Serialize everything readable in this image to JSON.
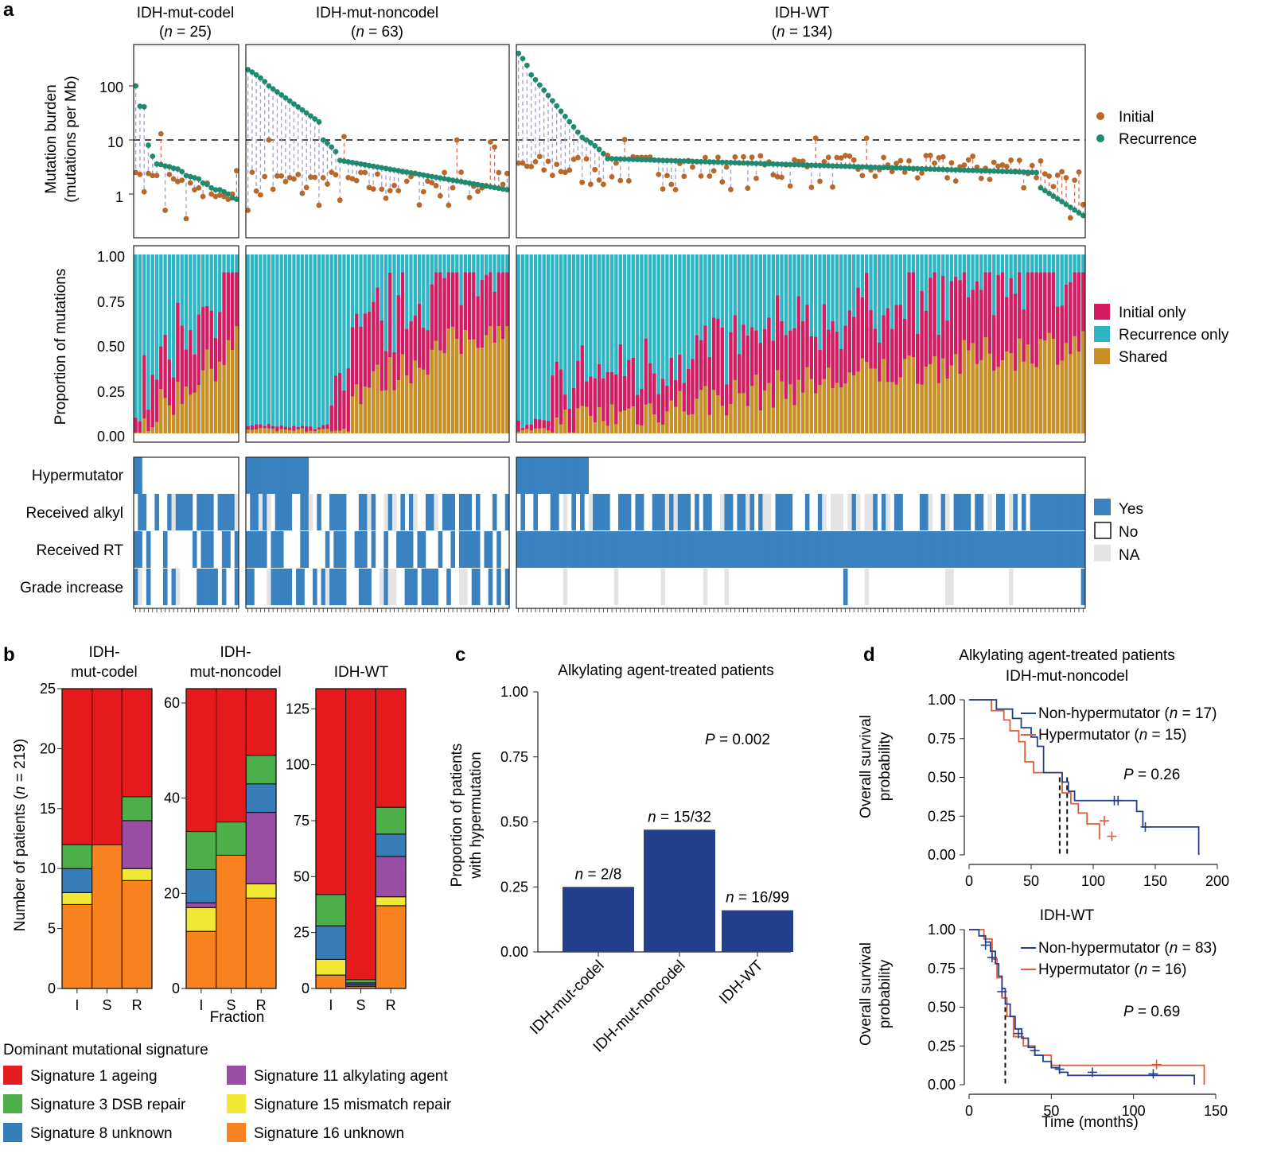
{
  "panel_labels": {
    "a": "a",
    "b": "b",
    "c": "c",
    "d": "d"
  },
  "panel_a": {
    "groups": [
      {
        "name": "IDH-mut-codel",
        "n_prefix": "(",
        "n_var": "n",
        "n_suffix": " = 25)"
      },
      {
        "name": "IDH-mut-noncodel",
        "n_prefix": "(",
        "n_var": "n",
        "n_suffix": " = 63)"
      },
      {
        "name": "IDH-WT",
        "n_prefix": "(",
        "n_var": "n",
        "n_suffix": " = 134)"
      }
    ],
    "burden": {
      "ylabel1": "Mutation burden",
      "ylabel2": "(mutations per Mb)",
      "yticks": [
        "100",
        "10",
        "1"
      ],
      "legend": [
        {
          "label": "Initial",
          "color": "#b8682a"
        },
        {
          "label": "Recurrence",
          "color": "#1f8a70"
        }
      ],
      "threshold": 10
    },
    "proportion": {
      "ylabel": "Proportion of mutations",
      "yticks": [
        "1.00",
        "0.75",
        "0.50",
        "0.25",
        "0.00"
      ],
      "legend": [
        {
          "label": "Initial only",
          "color": "#d81b60"
        },
        {
          "label": "Recurrence only",
          "color": "#2db5c3"
        },
        {
          "label": "Shared",
          "color": "#cc8e22"
        }
      ]
    },
    "annotations": {
      "rows": [
        "Hypermutator",
        "Received alkyl",
        "Received RT",
        "Grade increase"
      ],
      "legend": [
        {
          "label": "Yes",
          "color": "#3a81c0"
        },
        {
          "label": "No",
          "color": "#ffffff"
        },
        {
          "label": "NA",
          "color": "#e4e4e4"
        }
      ]
    }
  },
  "panel_b": {
    "ylabel_prefix": "Number of patients (",
    "ylabel_var": "n",
    "ylabel_suffix": " = 219)",
    "xlabel": "Fraction",
    "legend_title": "Dominant mutational signature",
    "legend": [
      {
        "label": "Signature 1 ageing",
        "color": "#e41a1c"
      },
      {
        "label": "Signature 11 alkylating agent",
        "color": "#984ea3"
      },
      {
        "label": "Signature 3 DSB repair",
        "color": "#4daf4a"
      },
      {
        "label": "Signature 15 mismatch repair",
        "color": "#f1e836"
      },
      {
        "label": "Signature 8 unknown",
        "color": "#377eb8"
      },
      {
        "label": "Signature 16 unknown",
        "color": "#f7821f"
      }
    ]
  },
  "panel_c": {
    "title": "Alkylating agent-treated patients",
    "ylabel1": "Proportion of patients",
    "ylabel2": "with hypermutation",
    "p_var": "P",
    "p_text": " = 0.002",
    "bar_color": "#243f8b"
  },
  "panel_d": {
    "title1": "Alkylating agent-treated patients",
    "title2": "IDH-mut-noncodel",
    "title3": "IDH-WT",
    "ylabel1": "Overall survival",
    "ylabel2": "probability",
    "xlabel": "Time (months)",
    "top": {
      "legend": [
        {
          "pre": "Non-hypermutator (",
          "var": "n",
          "post": " = 17)",
          "color": "#243f8b"
        },
        {
          "pre": "Hypermutator (",
          "var": "n",
          "post": " = 15)",
          "color": "#e05a35"
        }
      ],
      "p_var": "P",
      "p_text": " = 0.26"
    },
    "bottom": {
      "legend": [
        {
          "pre": "Non-hypermutator (",
          "var": "n",
          "post": " = 83)",
          "color": "#243f8b"
        },
        {
          "pre": "Hypermutator (",
          "var": "n",
          "post": " = 16)",
          "color": "#e05a35"
        }
      ],
      "p_var": "P",
      "p_text": " = 0.69"
    }
  },
  "chart_data": [
    {
      "type": "scatter",
      "title": "Mutation burden",
      "ylabel": "Mutation burden (mutations per Mb)",
      "log_y": true,
      "groups": [
        {
          "name": "IDH-mut-codel",
          "initial": [
            2.5,
            2.3,
            1.1,
            2.4,
            2.2,
            2.2,
            13,
            0.5,
            2.3,
            1.9,
            1.7,
            1.8,
            0.35,
            1.6,
            1.2,
            1.3,
            0.9,
            1.6,
            1.0,
            0.9,
            0.95,
            0.9,
            0.8,
            1.0,
            2.7
          ],
          "recurrence": [
            100,
            42,
            41,
            8,
            5,
            3.6,
            3.5,
            3.3,
            3.2,
            3.0,
            2.9,
            2.6,
            2.2,
            2.1,
            2.0,
            1.9,
            1.6,
            1.5,
            1.3,
            1.2,
            1.2,
            1.1,
            1.0,
            0.85,
            0.8
          ]
        },
        {
          "name": "IDH-mut-noncodel",
          "initial_summary": "mostly 0.5-3 per Mb, several above 10",
          "recurrence_summary": "sorted descending from about 200 to about 1.2"
        },
        {
          "name": "IDH-WT",
          "initial_summary": "mostly 1-5 per Mb",
          "recurrence_summary": "sorted descending from about 400 to about 0.4"
        }
      ]
    },
    {
      "type": "bar",
      "title": "Proportion of mutations",
      "ylabel": "Proportion of mutations",
      "ylim": [
        0,
        1
      ],
      "series": [
        {
          "name": "Initial only"
        },
        {
          "name": "Recurrence only"
        },
        {
          "name": "Shared"
        }
      ],
      "note": "one stacked bar per patient; shared fraction rises from near 0 to about 0.4-0.6 within each group"
    },
    {
      "type": "bar",
      "title": "IDH-mut-codel",
      "categories": [
        "I",
        "S",
        "R"
      ],
      "ylim": [
        0,
        25
      ],
      "yticks": [
        0,
        5,
        10,
        15,
        20,
        25
      ],
      "series": [
        {
          "name": "Signature 16 unknown",
          "values": [
            7,
            12,
            9
          ]
        },
        {
          "name": "Signature 15 mismatch repair",
          "values": [
            1,
            0,
            1
          ]
        },
        {
          "name": "Signature 8 unknown",
          "values": [
            2,
            0,
            0
          ]
        },
        {
          "name": "Signature 11 alkylating agent",
          "values": [
            0,
            0,
            4
          ]
        },
        {
          "name": "Signature 3 DSB repair",
          "values": [
            2,
            0,
            2
          ]
        },
        {
          "name": "Signature 1 ageing",
          "values": [
            13,
            13,
            9
          ]
        }
      ]
    },
    {
      "type": "bar",
      "title": "IDH-mut-noncodel",
      "categories": [
        "I",
        "S",
        "R"
      ],
      "ylim": [
        0,
        63
      ],
      "yticks": [
        0,
        20,
        40,
        60
      ],
      "series": [
        {
          "name": "Signature 16 unknown",
          "values": [
            12,
            28,
            19
          ]
        },
        {
          "name": "Signature 15 mismatch repair",
          "values": [
            5,
            0,
            3
          ]
        },
        {
          "name": "Signature 11 alkylating agent",
          "values": [
            1,
            0,
            15
          ]
        },
        {
          "name": "Signature 8 unknown",
          "values": [
            7,
            0,
            6
          ]
        },
        {
          "name": "Signature 3 DSB repair",
          "values": [
            8,
            7,
            6
          ]
        },
        {
          "name": "Signature 1 ageing",
          "values": [
            30,
            28,
            14
          ]
        }
      ]
    },
    {
      "type": "bar",
      "title": "IDH-WT",
      "categories": [
        "I",
        "S",
        "R"
      ],
      "ylim": [
        0,
        134
      ],
      "yticks": [
        0,
        25,
        50,
        75,
        100,
        125
      ],
      "series": [
        {
          "name": "Signature 16 unknown",
          "values": [
            6,
            1,
            37
          ]
        },
        {
          "name": "Signature 11 alkylating agent",
          "values": [
            0,
            0.8,
            0
          ]
        },
        {
          "name": "Signature 15 mismatch repair",
          "values": [
            7,
            0,
            4
          ]
        },
        {
          "name": "Signature 8 unknown",
          "values": [
            15,
            0.7,
            0
          ]
        },
        {
          "name": "Signature 11 alkylating agent",
          "values": [
            0,
            0,
            18
          ]
        },
        {
          "name": "Signature 8 unknown",
          "values": [
            0,
            0,
            10
          ]
        },
        {
          "name": "Signature 3 DSB repair",
          "values": [
            14,
            1.5,
            12
          ]
        },
        {
          "name": "Signature 1 ageing",
          "values": [
            92,
            130,
            53
          ]
        }
      ]
    },
    {
      "type": "bar",
      "title": "Alkylating agent-treated patients",
      "categories": [
        "IDH-mut-codel",
        "IDH-mut-noncodel",
        "IDH-WT"
      ],
      "values": [
        0.25,
        0.47,
        0.16
      ],
      "labels": [
        {
          "var": "n",
          "text": " = 2/8"
        },
        {
          "var": "n",
          "text": " = 15/32"
        },
        {
          "var": "n",
          "text": " = 16/99"
        }
      ],
      "ylim": [
        0,
        1
      ],
      "yticks": [
        "0.00",
        "0.25",
        "0.50",
        "0.75",
        "1.00"
      ],
      "ylabel": "Proportion of patients with hypermutation"
    },
    {
      "type": "line",
      "title": "IDH-mut-noncodel",
      "xlim": [
        0,
        200
      ],
      "xticks": [
        0,
        50,
        100,
        150,
        200
      ],
      "ylim": [
        0,
        1
      ],
      "yticks": [
        "0.00",
        "0.25",
        "0.50",
        "0.75",
        "1.00"
      ],
      "median_lines": [
        73,
        79
      ],
      "series": [
        {
          "name": "Non-hypermutator (n = 17)",
          "x": [
            0,
            10,
            22,
            35,
            42,
            50,
            55,
            60,
            70,
            75,
            80,
            85,
            95,
            110,
            135,
            140,
            185
          ],
          "y": [
            1.0,
            1.0,
            0.94,
            0.88,
            0.82,
            0.76,
            0.7,
            0.53,
            0.53,
            0.47,
            0.41,
            0.35,
            0.35,
            0.35,
            0.28,
            0.18,
            0.0
          ],
          "censored": [
            [
              117,
              0.35
            ],
            [
              120,
              0.35
            ],
            [
              142,
              0.18
            ]
          ]
        },
        {
          "name": "Hypermutator (n = 15)",
          "x": [
            0,
            18,
            28,
            33,
            40,
            45,
            52,
            58,
            67,
            75,
            82,
            88,
            95,
            105
          ],
          "y": [
            1.0,
            0.93,
            0.87,
            0.8,
            0.73,
            0.6,
            0.53,
            0.53,
            0.53,
            0.4,
            0.33,
            0.27,
            0.2,
            0.1
          ],
          "censored": [
            [
              109,
              0.22
            ],
            [
              115,
              0.12
            ]
          ]
        }
      ]
    },
    {
      "type": "line",
      "title": "IDH-WT",
      "xlim": [
        0,
        150
      ],
      "xticks": [
        0,
        50,
        100,
        150
      ],
      "ylim": [
        0,
        1
      ],
      "yticks": [
        "0.00",
        "0.25",
        "0.50",
        "0.75",
        "1.00"
      ],
      "median_lines": [
        22
      ],
      "series": [
        {
          "name": "Non-hypermutator (n = 83)",
          "x": [
            0,
            6,
            10,
            13,
            16,
            18,
            20,
            22,
            25,
            28,
            32,
            36,
            40,
            45,
            50,
            55,
            60,
            75,
            137
          ],
          "y": [
            1.0,
            0.96,
            0.92,
            0.86,
            0.78,
            0.7,
            0.62,
            0.52,
            0.44,
            0.36,
            0.3,
            0.24,
            0.19,
            0.15,
            0.11,
            0.08,
            0.06,
            0.06,
            0.0
          ],
          "censored": [
            [
              10,
              0.9
            ],
            [
              14,
              0.82
            ],
            [
              20,
              0.6
            ],
            [
              30,
              0.33
            ],
            [
              40,
              0.22
            ],
            [
              55,
              0.1
            ],
            [
              75,
              0.08
            ],
            [
              112,
              0.07
            ]
          ]
        },
        {
          "name": "Hypermutator (n = 16)",
          "x": [
            0,
            9,
            14,
            17,
            20,
            23,
            27,
            33,
            40,
            50,
            143
          ],
          "y": [
            1.0,
            0.94,
            0.81,
            0.69,
            0.56,
            0.44,
            0.31,
            0.25,
            0.19,
            0.125,
            0.0
          ],
          "censored": [
            [
              114,
              0.13
            ]
          ]
        }
      ]
    }
  ]
}
